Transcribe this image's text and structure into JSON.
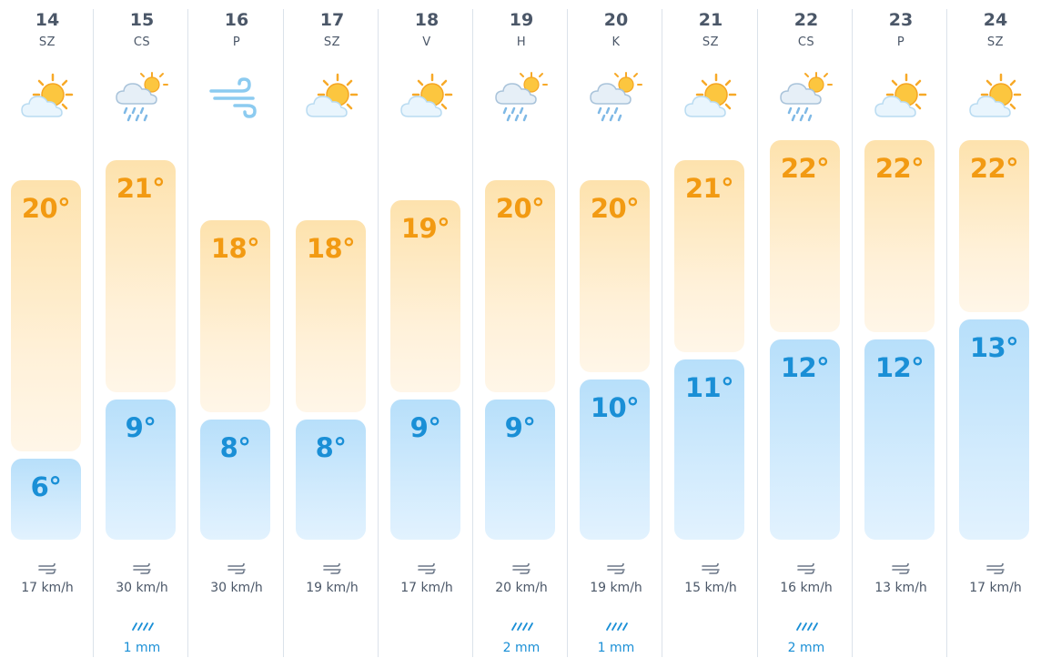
{
  "days": [
    {
      "date": "14",
      "day": "SZ",
      "icon": "partly-cloudy-icon",
      "high": "20°",
      "low": "6°",
      "high_temp": 20,
      "low_temp": 6,
      "wind": "17 km/h",
      "rain": ""
    },
    {
      "date": "15",
      "day": "CS",
      "icon": "rain-showers-icon",
      "high": "21°",
      "low": "9°",
      "high_temp": 21,
      "low_temp": 9,
      "wind": "30 km/h",
      "rain": "1 mm"
    },
    {
      "date": "16",
      "day": "P",
      "icon": "windy-icon",
      "high": "18°",
      "low": "8°",
      "high_temp": 18,
      "low_temp": 8,
      "wind": "30 km/h",
      "rain": ""
    },
    {
      "date": "17",
      "day": "SZ",
      "icon": "partly-cloudy-icon",
      "high": "18°",
      "low": "8°",
      "high_temp": 18,
      "low_temp": 8,
      "wind": "19 km/h",
      "rain": ""
    },
    {
      "date": "18",
      "day": "V",
      "icon": "partly-cloudy-icon",
      "high": "19°",
      "low": "9°",
      "high_temp": 19,
      "low_temp": 9,
      "wind": "17 km/h",
      "rain": ""
    },
    {
      "date": "19",
      "day": "H",
      "icon": "rain-showers-icon",
      "high": "20°",
      "low": "9°",
      "high_temp": 20,
      "low_temp": 9,
      "wind": "20 km/h",
      "rain": "2 mm"
    },
    {
      "date": "20",
      "day": "K",
      "icon": "rain-showers-icon",
      "high": "20°",
      "low": "10°",
      "high_temp": 20,
      "low_temp": 10,
      "wind": "19 km/h",
      "rain": "1 mm"
    },
    {
      "date": "21",
      "day": "SZ",
      "icon": "partly-cloudy-icon",
      "high": "21°",
      "low": "11°",
      "high_temp": 21,
      "low_temp": 11,
      "wind": "15 km/h",
      "rain": ""
    },
    {
      "date": "22",
      "day": "CS",
      "icon": "rain-showers-icon",
      "high": "22°",
      "low": "12°",
      "high_temp": 22,
      "low_temp": 12,
      "wind": "16 km/h",
      "rain": "2 mm"
    },
    {
      "date": "23",
      "day": "P",
      "icon": "partly-cloudy-icon",
      "high": "22°",
      "low": "12°",
      "high_temp": 22,
      "low_temp": 12,
      "wind": "13 km/h",
      "rain": ""
    },
    {
      "date": "24",
      "day": "SZ",
      "icon": "partly-cloudy-icon",
      "high": "22°",
      "low": "13°",
      "high_temp": 22,
      "low_temp": 13,
      "wind": "17 km/h",
      "rain": ""
    }
  ],
  "colors": {
    "high_text": "#f29a12",
    "low_text": "#1a8fd6",
    "rain_text": "#1a8fd6",
    "separator": "#dbe2ea"
  }
}
